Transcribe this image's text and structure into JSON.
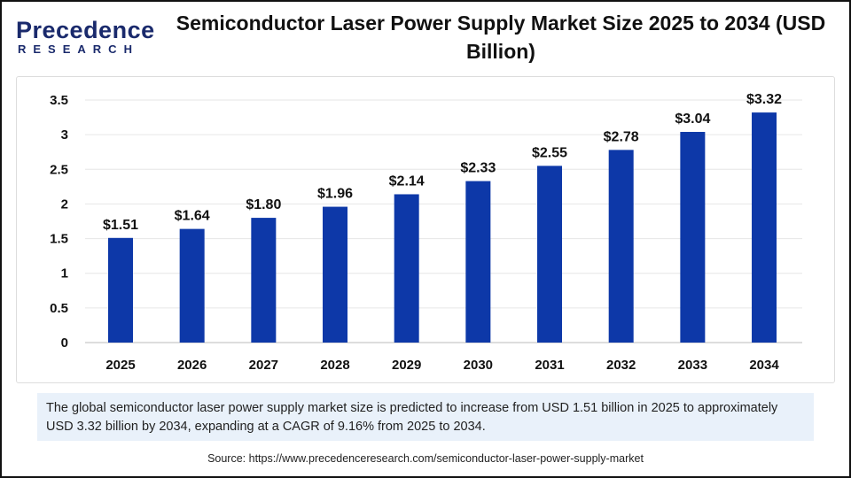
{
  "logo": {
    "line1": "Precedence",
    "line2": "RESEARCH"
  },
  "title": "Semiconductor Laser Power Supply Market Size 2025 to 2034 (USD Billion)",
  "chart_data": {
    "type": "bar",
    "title": "Semiconductor Laser Power Supply Market Size 2025 to 2034 (USD Billion)",
    "categories": [
      "2025",
      "2026",
      "2027",
      "2028",
      "2029",
      "2030",
      "2031",
      "2032",
      "2033",
      "2034"
    ],
    "values": [
      1.51,
      1.64,
      1.8,
      1.96,
      2.14,
      2.33,
      2.55,
      2.78,
      3.04,
      3.32
    ],
    "data_labels": [
      "$1.51",
      "$1.64",
      "$1.80",
      "$1.96",
      "$2.14",
      "$2.33",
      "$2.55",
      "$2.78",
      "$3.04",
      "$3.32"
    ],
    "yticks": [
      "0",
      "0.5",
      "1",
      "1.5",
      "2",
      "2.5",
      "3",
      "3.5"
    ],
    "ylim": [
      0,
      3.5
    ],
    "grid": true,
    "bar_color": "#0d38a8"
  },
  "summary": "The global semiconductor laser power supply market size is predicted to increase from USD 1.51 billion in 2025 to approximately USD 3.32 billion by 2034, expanding at a CAGR of 9.16% from 2025 to 2034.",
  "source": "Source: https://www.precedenceresearch.com/semiconductor-laser-power-supply-market"
}
